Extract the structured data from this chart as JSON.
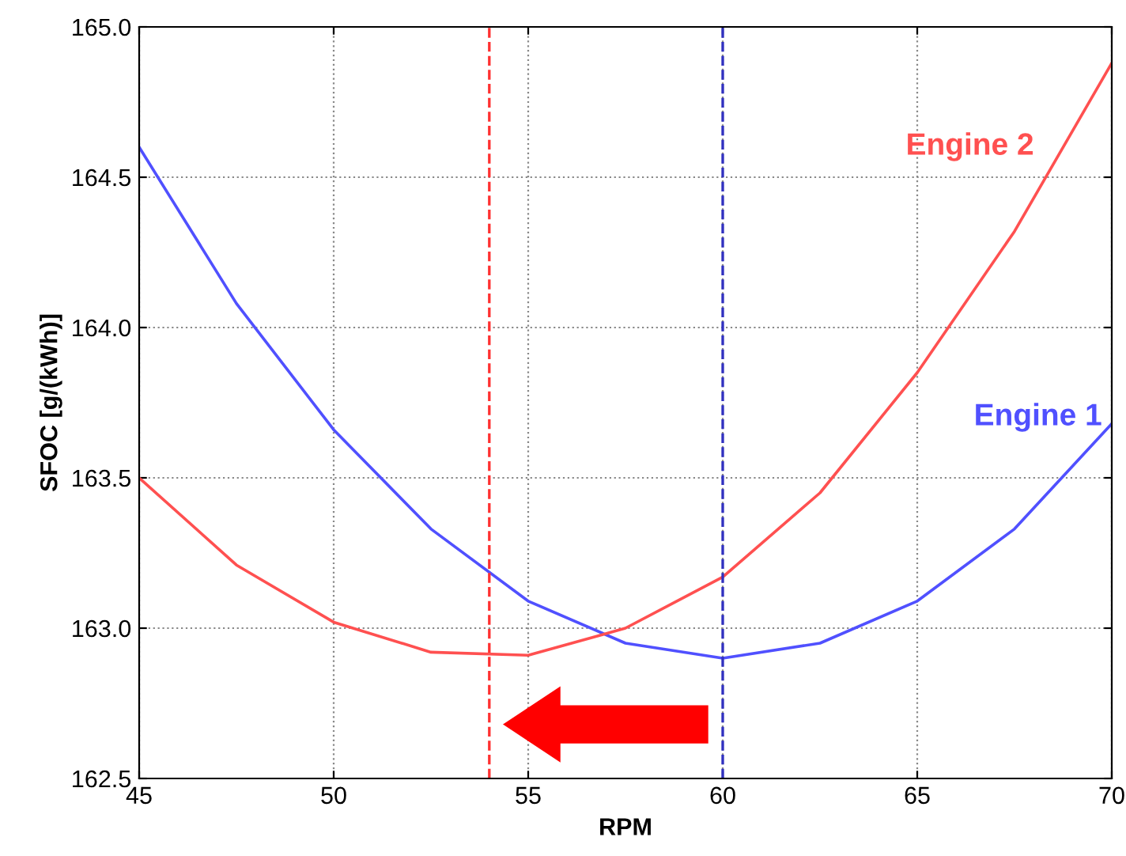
{
  "chart_data": {
    "type": "line",
    "xlabel": "RPM",
    "ylabel": "SFOC [g/(kWh)]",
    "x": [
      45,
      47.5,
      50,
      52.5,
      55,
      57.5,
      60,
      62.5,
      65,
      67.5,
      70
    ],
    "series": [
      {
        "name": "Engine 1",
        "color": "#5050ff",
        "values": [
          164.6,
          164.08,
          163.66,
          163.33,
          163.09,
          162.95,
          162.9,
          162.95,
          163.09,
          163.33,
          163.68
        ]
      },
      {
        "name": "Engine 2",
        "color": "#ff5050",
        "values": [
          163.5,
          163.21,
          163.02,
          162.92,
          162.91,
          163.0,
          163.17,
          163.45,
          163.85,
          164.32,
          164.88
        ]
      }
    ],
    "xlim": [
      45,
      70
    ],
    "xticks": [
      45,
      50,
      55,
      60,
      65,
      70
    ],
    "ylim": [
      162.5,
      165.0
    ],
    "yticks": [
      {
        "value": 162.5,
        "label": "162.5"
      },
      {
        "value": 163.0,
        "label": "163.0"
      },
      {
        "value": 163.5,
        "label": "163.5"
      },
      {
        "value": 164.0,
        "label": "164.0"
      },
      {
        "value": 164.5,
        "label": "164.5"
      },
      {
        "value": 165.0,
        "label": "165.0"
      }
    ],
    "ref_lines": [
      {
        "axis": "x",
        "value": 54,
        "color": "#ff3030",
        "line_style": "dashed"
      },
      {
        "axis": "x",
        "value": 60,
        "color": "#3030c0",
        "line_style": "dashed"
      }
    ],
    "grid": true,
    "marker": "none",
    "line_style": "solid"
  }
}
